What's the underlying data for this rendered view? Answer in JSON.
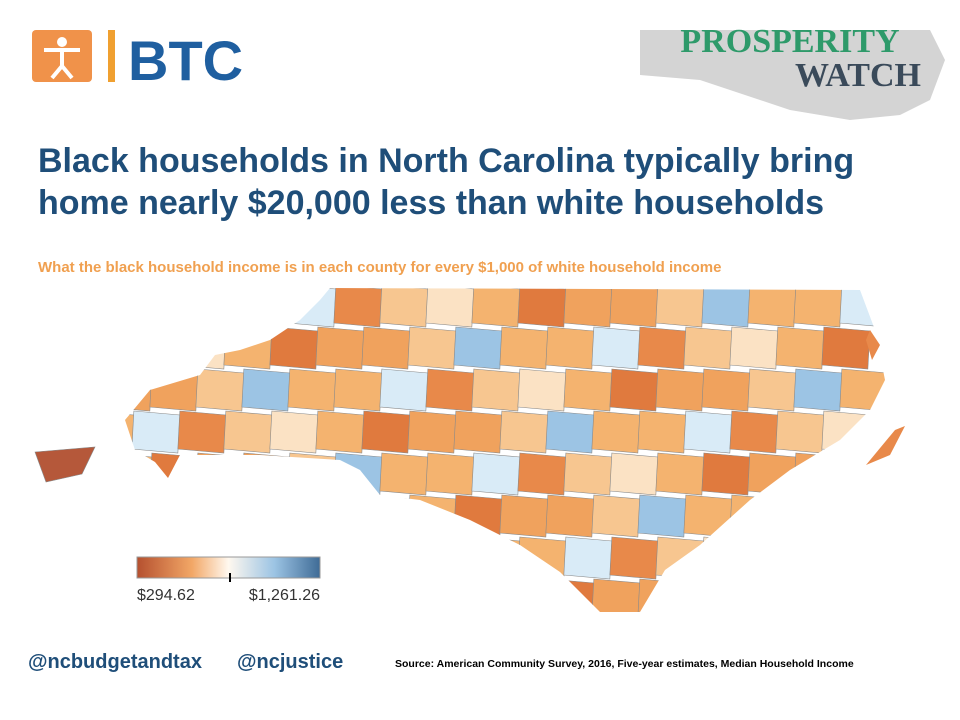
{
  "header": {
    "logo": "BTC",
    "brand": [
      "PROSPERITY",
      "WATCH"
    ]
  },
  "title": [
    "Black households in North Carolina typically bring",
    "home nearly $20,000 less than white households"
  ],
  "subtitle": "What the black household income is in each county for every $1,000 of white household income",
  "legend": {
    "min": "$294.62",
    "max": "$1,261.26"
  },
  "footer": {
    "handles": [
      "@ncbudgetandtax",
      "@ncjustice"
    ],
    "source": "Source: American Community Survey, 2016, Five-year estimates, Median Household Income"
  }
}
